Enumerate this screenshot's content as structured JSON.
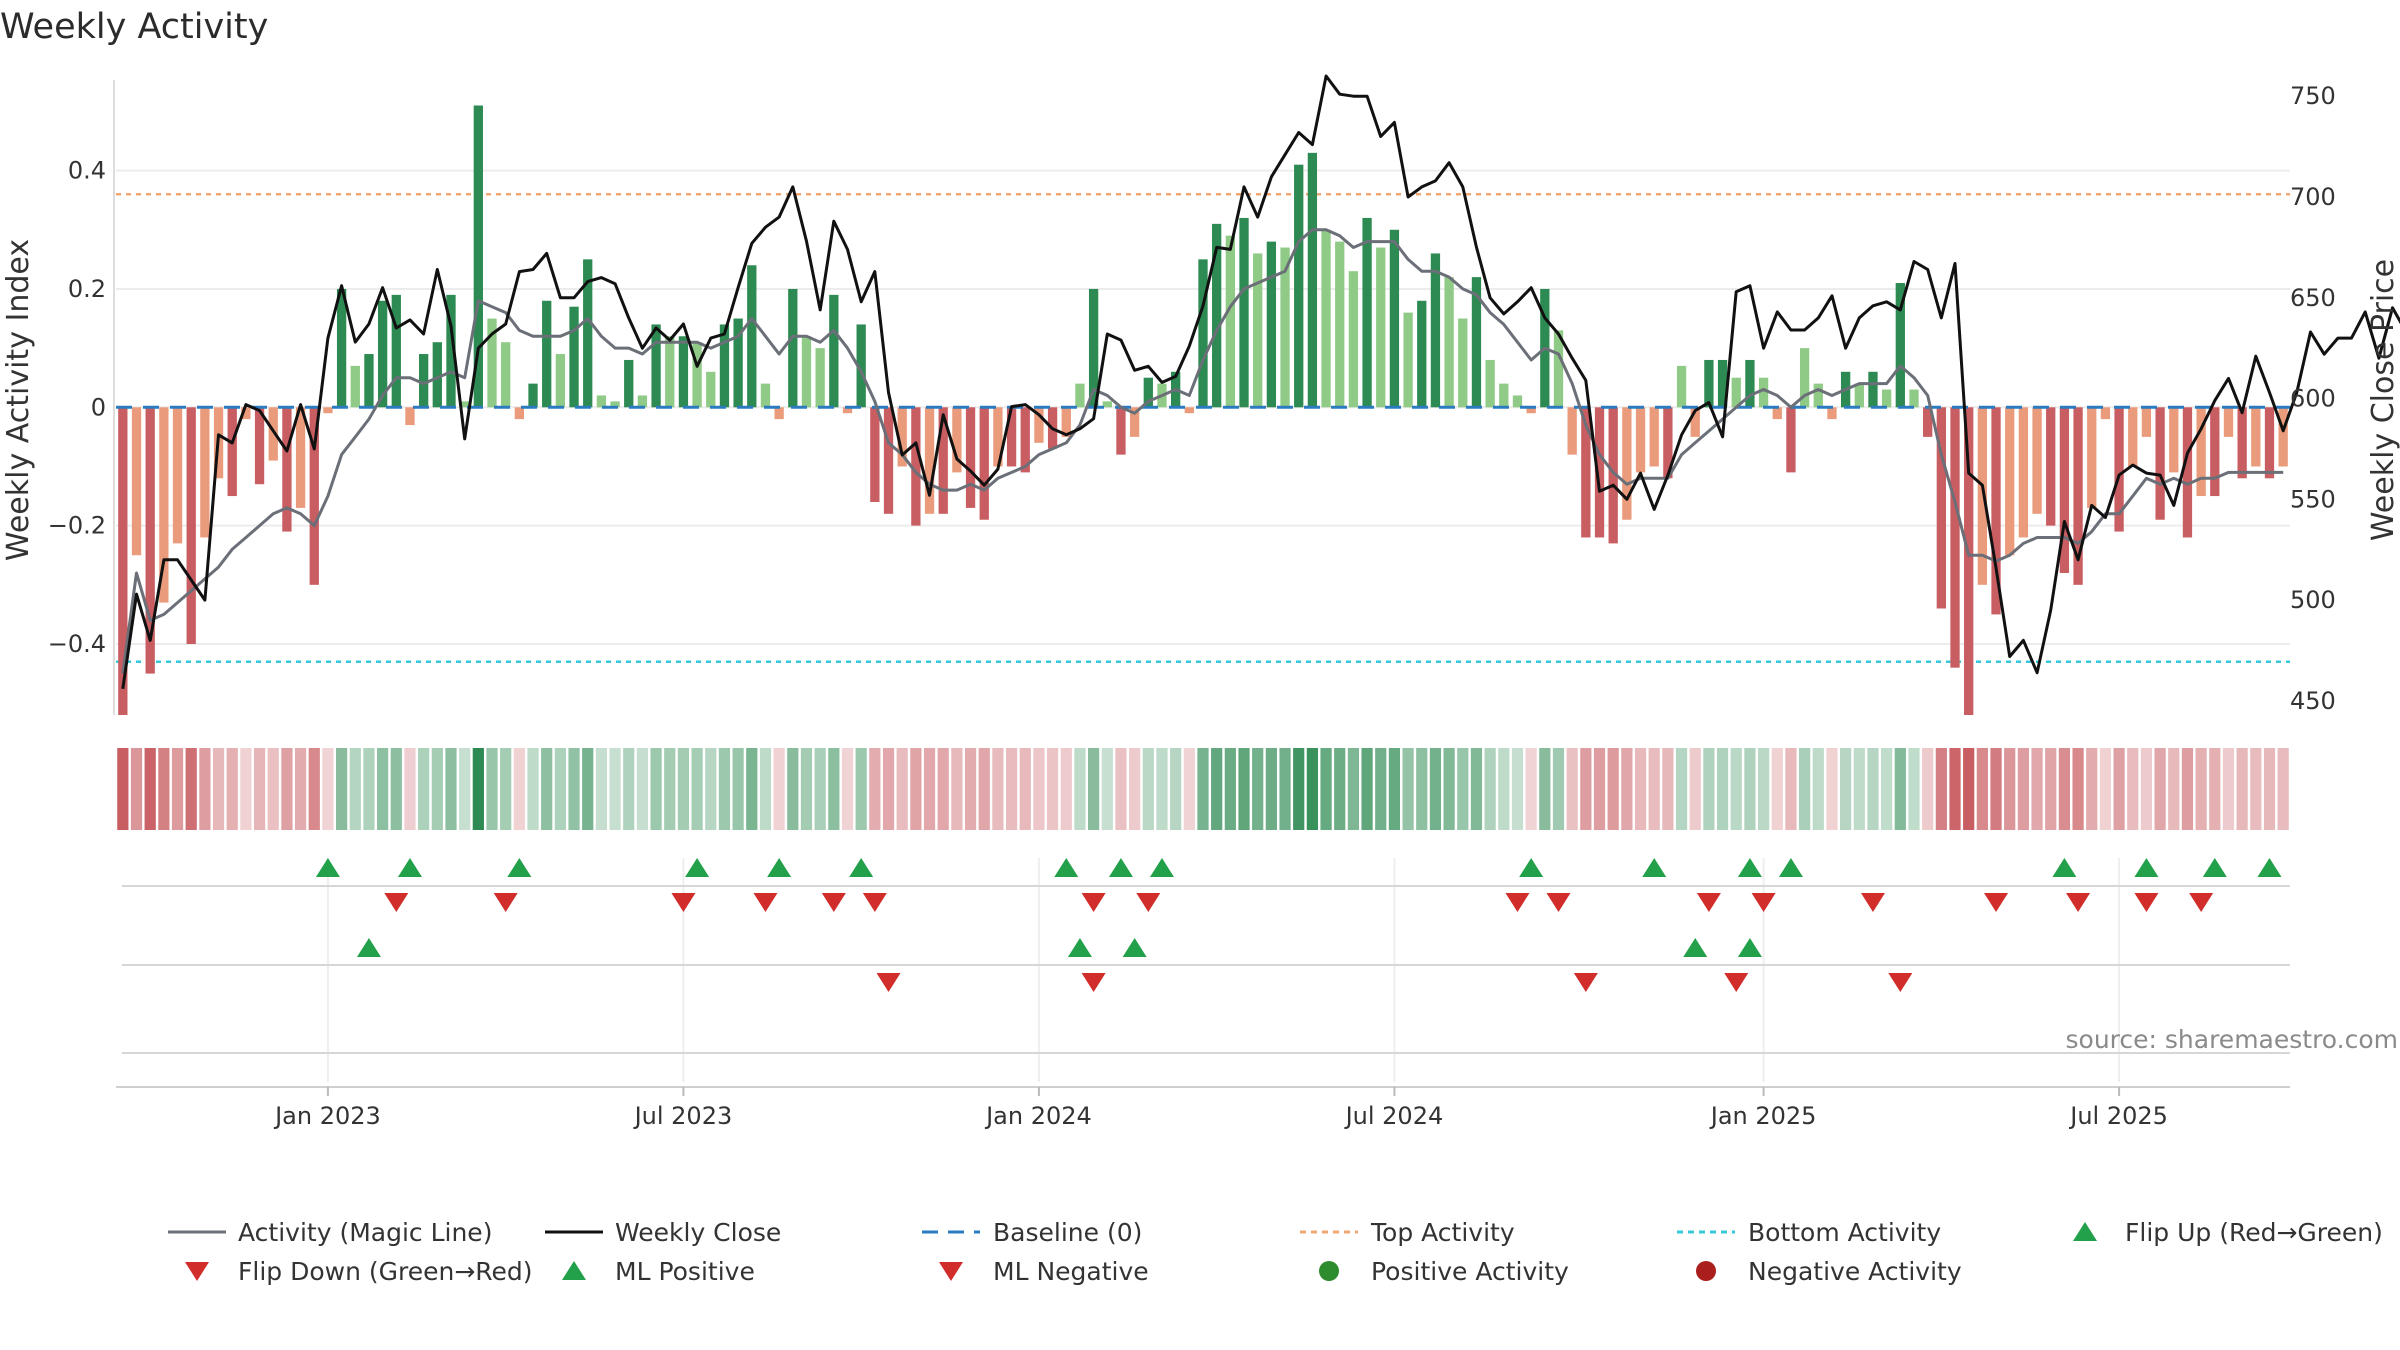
{
  "chart_data": {
    "type": "bar+line",
    "title": "Weekly Activity",
    "ylabel_left": "Weekly Activity Index",
    "ylabel_right": "Weekly Close Price",
    "ylim_left": [
      -0.52,
      0.57
    ],
    "ylim_right": [
      443,
      763
    ],
    "left_ticks": [
      {
        "v": 0.4,
        "label": "0.4"
      },
      {
        "v": 0.2,
        "label": "0.2"
      },
      {
        "v": 0,
        "label": "0"
      },
      {
        "v": -0.2,
        "label": "−0.2"
      },
      {
        "v": -0.4,
        "label": "−0.4"
      }
    ],
    "right_ticks": [
      {
        "v": 750,
        "label": "750"
      },
      {
        "v": 700,
        "label": "700"
      },
      {
        "v": 650,
        "label": "650"
      },
      {
        "v": 600,
        "label": "600"
      },
      {
        "v": 550,
        "label": "550"
      },
      {
        "v": 500,
        "label": "500"
      },
      {
        "v": 450,
        "label": "450"
      }
    ],
    "x_ticks": [
      {
        "week": 15,
        "label": "Jan 2023"
      },
      {
        "week": 41,
        "label": "Jul 2023"
      },
      {
        "week": 67,
        "label": "Jan 2024"
      },
      {
        "week": 93,
        "label": "Jul 2024"
      },
      {
        "week": 120,
        "label": "Jan 2025"
      },
      {
        "week": 146,
        "label": "Jul 2025"
      }
    ],
    "top_activity": 0.36,
    "bottom_activity": -0.43,
    "baseline": 0,
    "activity": [
      -0.52,
      -0.25,
      -0.45,
      -0.33,
      -0.23,
      -0.4,
      -0.22,
      -0.12,
      -0.15,
      -0.02,
      -0.13,
      -0.09,
      -0.21,
      -0.17,
      -0.3,
      -0.01,
      0.2,
      0.07,
      0.09,
      0.18,
      0.19,
      -0.03,
      0.09,
      0.11,
      0.19,
      0.01,
      0.51,
      0.15,
      0.11,
      -0.02,
      0.04,
      0.18,
      0.09,
      0.17,
      0.25,
      0.02,
      0.01,
      0.08,
      0.02,
      0.14,
      0.12,
      0.12,
      0.11,
      0.06,
      0.14,
      0.15,
      0.24,
      0.04,
      -0.02,
      0.2,
      0.12,
      0.1,
      0.19,
      -0.01,
      0.14,
      -0.16,
      -0.18,
      -0.1,
      -0.2,
      -0.18,
      -0.18,
      -0.11,
      -0.17,
      -0.19,
      -0.1,
      -0.1,
      -0.11,
      -0.06,
      -0.07,
      -0.05,
      0.04,
      0.2,
      0.01,
      -0.08,
      -0.05,
      0.05,
      0.04,
      0.06,
      -0.01,
      0.25,
      0.31,
      0.29,
      0.32,
      0.26,
      0.28,
      0.27,
      0.41,
      0.43,
      0.3,
      0.28,
      0.23,
      0.32,
      0.27,
      0.3,
      0.16,
      0.18,
      0.26,
      0.22,
      0.15,
      0.22,
      0.08,
      0.04,
      0.02,
      -0.01,
      0.2,
      0.13,
      -0.08,
      -0.22,
      -0.22,
      -0.23,
      -0.19,
      -0.11,
      -0.1,
      -0.12,
      0.07,
      -0.05,
      0.08,
      0.08,
      0.05,
      0.08,
      0.05,
      -0.02,
      -0.11,
      0.1,
      0.04,
      -0.02,
      0.06,
      0.04,
      0.06,
      0.03,
      0.21,
      0.03,
      -0.05,
      -0.34,
      -0.44,
      -0.52,
      -0.3,
      -0.35,
      -0.25,
      -0.22,
      -0.18,
      -0.2,
      -0.28,
      -0.3,
      -0.17,
      -0.02,
      -0.21,
      -0.1,
      -0.05,
      -0.19,
      -0.11,
      -0.22,
      -0.15,
      -0.15,
      -0.05,
      -0.12,
      -0.1,
      -0.12,
      -0.1
    ],
    "magic_line": [
      -0.45,
      -0.28,
      -0.36,
      -0.35,
      -0.33,
      -0.31,
      -0.29,
      -0.27,
      -0.24,
      -0.22,
      -0.2,
      -0.18,
      -0.17,
      -0.18,
      -0.2,
      -0.15,
      -0.08,
      -0.05,
      -0.02,
      0.02,
      0.05,
      0.05,
      0.04,
      0.05,
      0.06,
      0.05,
      0.18,
      0.17,
      0.16,
      0.13,
      0.12,
      0.12,
      0.12,
      0.13,
      0.15,
      0.12,
      0.1,
      0.1,
      0.09,
      0.11,
      0.11,
      0.11,
      0.11,
      0.1,
      0.11,
      0.12,
      0.15,
      0.12,
      0.09,
      0.12,
      0.12,
      0.11,
      0.13,
      0.1,
      0.06,
      0.01,
      -0.06,
      -0.08,
      -0.11,
      -0.13,
      -0.14,
      -0.14,
      -0.13,
      -0.14,
      -0.12,
      -0.11,
      -0.1,
      -0.08,
      -0.07,
      -0.06,
      -0.03,
      0.03,
      0.02,
      0.0,
      -0.01,
      0.01,
      0.02,
      0.03,
      0.02,
      0.08,
      0.13,
      0.17,
      0.2,
      0.21,
      0.22,
      0.23,
      0.28,
      0.3,
      0.3,
      0.29,
      0.27,
      0.28,
      0.28,
      0.28,
      0.25,
      0.23,
      0.23,
      0.22,
      0.2,
      0.19,
      0.16,
      0.14,
      0.11,
      0.08,
      0.1,
      0.09,
      0.04,
      -0.03,
      -0.08,
      -0.11,
      -0.13,
      -0.12,
      -0.12,
      -0.12,
      -0.08,
      -0.06,
      -0.04,
      -0.02,
      0.0,
      0.02,
      0.03,
      0.02,
      0.0,
      0.02,
      0.03,
      0.02,
      0.03,
      0.04,
      0.04,
      0.04,
      0.07,
      0.05,
      0.02,
      -0.08,
      -0.16,
      -0.25,
      -0.25,
      -0.26,
      -0.25,
      -0.23,
      -0.22,
      -0.22,
      -0.22,
      -0.23,
      -0.21,
      -0.18,
      -0.18,
      -0.15,
      -0.12,
      -0.13,
      -0.12,
      -0.13,
      -0.12,
      -0.12,
      -0.11,
      -0.11,
      -0.11,
      -0.11,
      -0.11
    ],
    "weekly_close": [
      456,
      503,
      480,
      520,
      520,
      510,
      500,
      582,
      578,
      597,
      594,
      584,
      574,
      597,
      575,
      630,
      656,
      628,
      637,
      655,
      635,
      639,
      632,
      664,
      636,
      580,
      625,
      632,
      637,
      663,
      664,
      672,
      650,
      650,
      658,
      660,
      657,
      640,
      625,
      635,
      629,
      637,
      616,
      630,
      632,
      655,
      677,
      685,
      690,
      705,
      678,
      644,
      688,
      674,
      648,
      663,
      603,
      572,
      578,
      552,
      592,
      570,
      564,
      557,
      565,
      596,
      597,
      592,
      585,
      582,
      585,
      590,
      632,
      629,
      614,
      616,
      608,
      611,
      626,
      646,
      675,
      674,
      705,
      690,
      710,
      721,
      732,
      726,
      760,
      751,
      750,
      750,
      730,
      737,
      700,
      705,
      708,
      717,
      705,
      675,
      650,
      642,
      648,
      655,
      640,
      632,
      620,
      609,
      554,
      557,
      550,
      563,
      545,
      562,
      582,
      594,
      598,
      581,
      653,
      656,
      625,
      643,
      634,
      634,
      640,
      651,
      625,
      640,
      646,
      648,
      644,
      668,
      664,
      640,
      667,
      563,
      557,
      516,
      472,
      480,
      464,
      495,
      539,
      520,
      547,
      541,
      562,
      567,
      563,
      562,
      547,
      573,
      585,
      599,
      610,
      593,
      621,
      603,
      584,
      603,
      633,
      622,
      630,
      630,
      643,
      620,
      645,
      633,
      628
    ]
  },
  "legend": {
    "magic_line": "Activity (Magic Line)",
    "weekly_close": "Weekly Close",
    "baseline": "Baseline (0)",
    "top_activity": "Top Activity",
    "bottom_activity": "Bottom Activity",
    "flip_up": "Flip Up (Red→Green)",
    "flip_down": "Flip Down (Green→Red)",
    "ml_positive": "ML Positive",
    "ml_negative": "ML Negative",
    "positive_activity": "Positive Activity",
    "negative_activity": "Negative Activity"
  },
  "markers": {
    "flip_up_weeks": [
      15,
      21,
      29,
      42,
      48,
      54,
      69,
      73,
      76,
      103,
      112,
      119,
      122,
      142,
      148,
      153,
      157
    ],
    "flip_down_weeks": [
      20,
      28,
      41,
      47,
      52,
      55,
      71,
      75,
      102,
      105,
      116,
      120,
      128,
      137,
      143,
      148,
      152
    ],
    "ml_positive_weeks": [
      18,
      70,
      74,
      115,
      119
    ],
    "ml_negative_weeks": [
      56,
      71,
      107,
      118,
      130
    ]
  },
  "source": "source: sharemaestro.com",
  "colors": {
    "strong_pos": "#2d8a52",
    "weak_pos": "#8fca86",
    "strong_neg": "#c85d62",
    "weak_neg": "#e99b7b",
    "magic_line": "#6b6f77",
    "close": "#111111",
    "top": "#f0a872",
    "bottom": "#37c9d8",
    "baseline": "#2a7bc0",
    "marker_up": "#22a04a",
    "marker_down": "#d12d2a",
    "pos_dot": "#2e8b2e",
    "neg_dot": "#aa1e1e"
  }
}
